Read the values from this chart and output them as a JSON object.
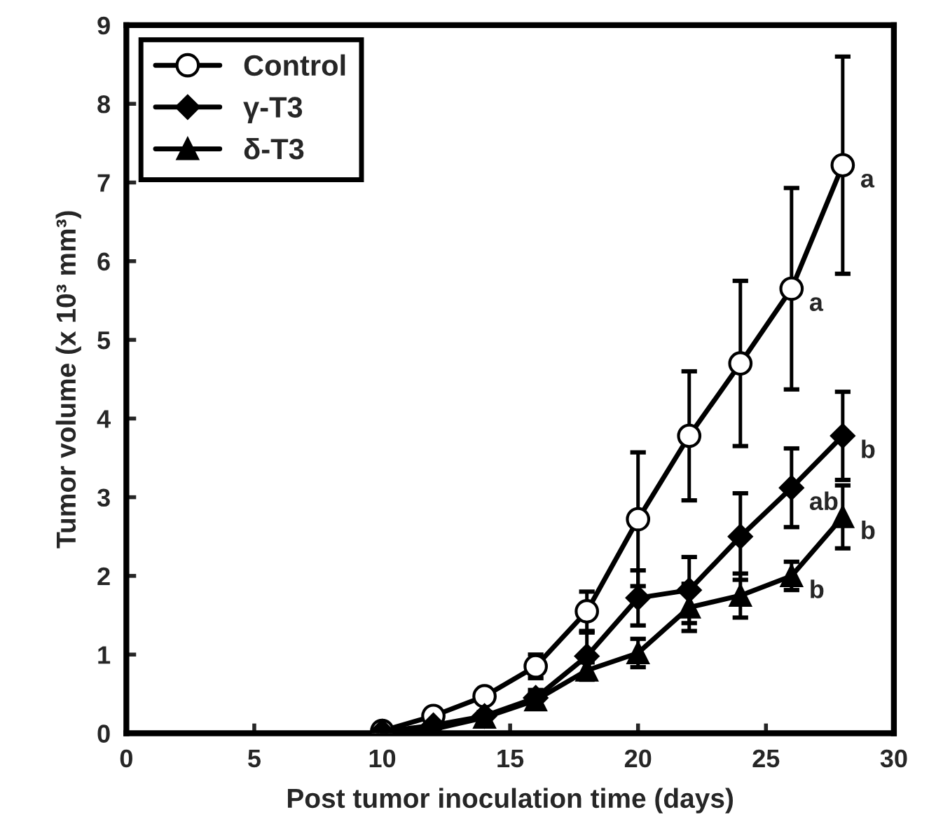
{
  "chart_data": {
    "type": "line",
    "xlabel": "Post tumor inoculation time (days)",
    "ylabel": "Tumor volume (x 10³ mm³)",
    "x": [
      10,
      12,
      14,
      16,
      18,
      20,
      22,
      24,
      26,
      28
    ],
    "series": [
      {
        "name": "Control",
        "color": "#ffffff",
        "marker": "circle",
        "values": [
          0.03,
          0.22,
          0.47,
          0.85,
          1.55,
          2.72,
          3.78,
          4.7,
          5.65,
          7.22
        ],
        "errors": [
          0.03,
          0.05,
          0.05,
          0.15,
          0.25,
          0.85,
          0.82,
          1.05,
          1.28,
          1.38
        ],
        "value_labels": [
          null,
          null,
          null,
          null,
          null,
          null,
          null,
          null,
          "a",
          "a"
        ]
      },
      {
        "name": "γ-T3",
        "color": "#000000",
        "marker": "diamond",
        "values": [
          0.02,
          0.1,
          0.22,
          0.45,
          0.98,
          1.72,
          1.82,
          2.5,
          3.12,
          3.78
        ],
        "errors": [
          0.02,
          0.03,
          0.05,
          0.1,
          0.3,
          0.35,
          0.42,
          0.55,
          0.5,
          0.56
        ],
        "value_labels": [
          null,
          null,
          null,
          null,
          null,
          null,
          null,
          null,
          "ab",
          "b"
        ]
      },
      {
        "name": "δ-T3",
        "color": "#000000",
        "marker": "triangle",
        "values": [
          0.0,
          0.05,
          0.2,
          0.42,
          0.8,
          1.02,
          1.6,
          1.75,
          2.0,
          2.75
        ],
        "errors": [
          0.0,
          0.03,
          0.05,
          0.08,
          0.1,
          0.18,
          0.3,
          0.28,
          0.18,
          0.4
        ],
        "value_labels": [
          null,
          null,
          null,
          null,
          null,
          null,
          null,
          null,
          "b",
          "b"
        ]
      }
    ],
    "xlim": [
      0,
      30
    ],
    "xticks": [
      0,
      5,
      10,
      15,
      20,
      25,
      30
    ],
    "ylim": [
      0,
      9
    ],
    "yticks": [
      0,
      1,
      2,
      3,
      4,
      5,
      6,
      7,
      8,
      9
    ],
    "grid": false,
    "legend": "top left",
    "line_style": "solid"
  }
}
